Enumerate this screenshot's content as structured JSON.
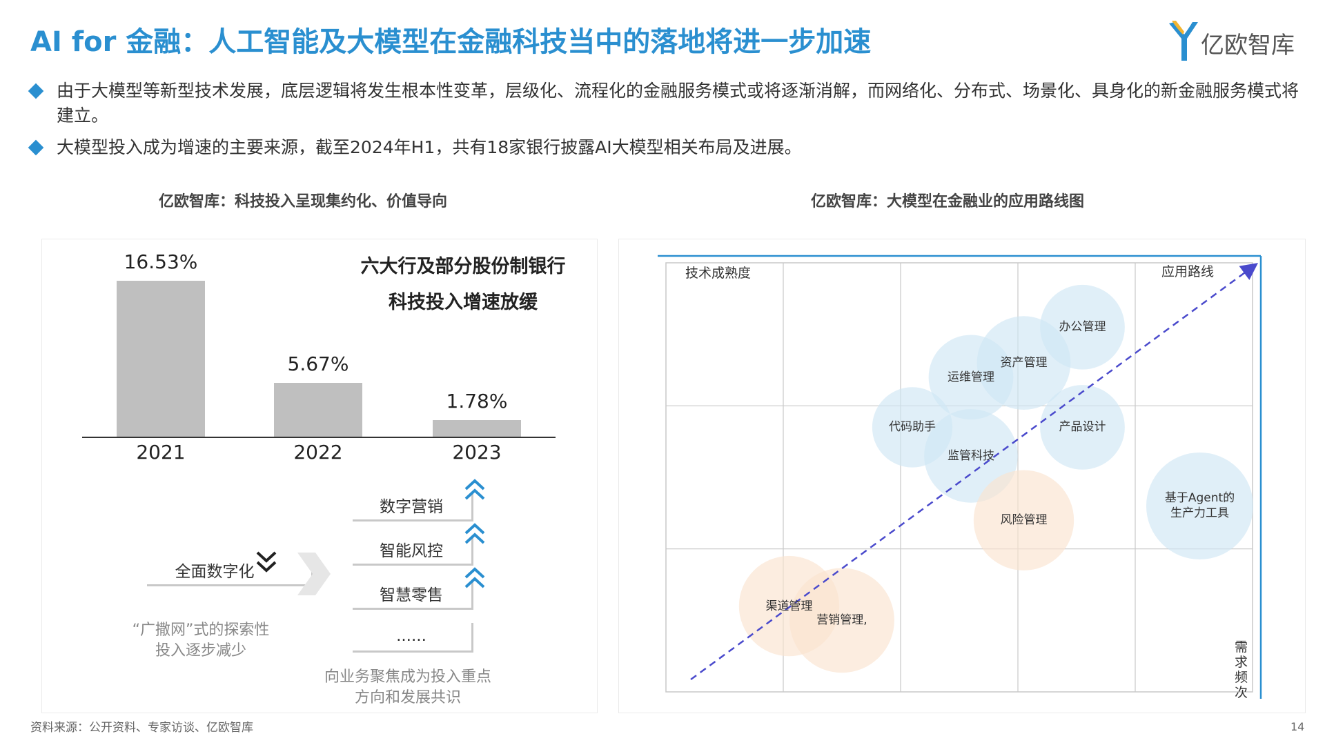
{
  "header": {
    "title": "AI for 金融：人工智能及大模型在金融科技当中的落地将进一步加速",
    "logo_text": "亿欧智库"
  },
  "bullets": [
    "由于大模型等新型技术发展，底层逻辑将发生根本性变革，层级化、流程化的金融服务模式或将逐渐消解，而网络化、分布式、场景化、具身化的新金融服务模式将建立。",
    "大模型投入成为增速的主要来源，截至2024年H1，共有18家银行披露AI大模型相关布局及进展。"
  ],
  "left_chart": {
    "subtitle": "亿欧智库：科技投入呈现集约化、价值导向",
    "callout_line1": "六大行及部分股份制银行",
    "callout_line2": "科技投入增速放缓",
    "left_tag": "全面数字化",
    "right_tags": [
      "数字营销",
      "智能风控",
      "智慧零售",
      "......"
    ],
    "left_note": "“广撒网”式的探索性投入逐步减少",
    "right_note": "向业务聚焦成为投入重点方向和发展共识",
    "colors": {
      "bar": "#bfbfbf",
      "arrow_blue": "#2a8fd0"
    }
  },
  "right_chart": {
    "subtitle": "亿欧智库：大模型在金融业的应用路线图",
    "y_axis_label": "技术成熟度",
    "x_axis_label": "需求频次",
    "route_label": "应用路线",
    "bubbles": [
      {
        "label": "办公管理",
        "x": 3.55,
        "y": 2.55,
        "r": 0.38,
        "color": "#cfe6f5"
      },
      {
        "label": "资产管理",
        "x": 3.05,
        "y": 2.3,
        "r": 0.42,
        "color": "#cfe6f5"
      },
      {
        "label": "运维管理",
        "x": 2.6,
        "y": 2.2,
        "r": 0.38,
        "color": "#cfe6f5"
      },
      {
        "label": "代码助手",
        "x": 2.1,
        "y": 1.85,
        "r": 0.36,
        "color": "#cfe6f5"
      },
      {
        "label": "产品设计",
        "x": 3.55,
        "y": 1.85,
        "r": 0.38,
        "color": "#cfe6f5"
      },
      {
        "label": "监管科技",
        "x": 2.6,
        "y": 1.65,
        "r": 0.42,
        "color": "#cfe6f5"
      },
      {
        "label": "风险管理",
        "x": 3.05,
        "y": 1.2,
        "r": 0.45,
        "color": "#fbe3cf"
      },
      {
        "label": "基于Agent的\n生产力工具",
        "x": 4.55,
        "y": 1.3,
        "r": 0.48,
        "color": "#cfe6f5"
      },
      {
        "label": "渠道管理",
        "x": 1.05,
        "y": 0.6,
        "r": 0.45,
        "color": "#fbe3cf"
      },
      {
        "label": "营销管理,",
        "x": 1.5,
        "y": 0.5,
        "r": 0.47,
        "color": "#fbe3cf"
      }
    ],
    "colors": {
      "route_line": "#4a4acc",
      "axis_accent": "#2a8fd0",
      "grid": "#c8c8c8"
    }
  },
  "chart_data": {
    "type": "bar",
    "categories": [
      "2021",
      "2022",
      "2023"
    ],
    "values": [
      16.53,
      5.67,
      1.78
    ],
    "value_labels": [
      "16.53%",
      "5.67%",
      "1.78%"
    ],
    "title": "亿欧智库：科技投入呈现集约化、价值导向",
    "xlabel": "",
    "ylabel": "",
    "ylim": [
      0,
      18
    ],
    "grid": false
  },
  "footer": {
    "source": "资料来源：公开资料、专家访谈、亿欧智库",
    "page": "14"
  }
}
